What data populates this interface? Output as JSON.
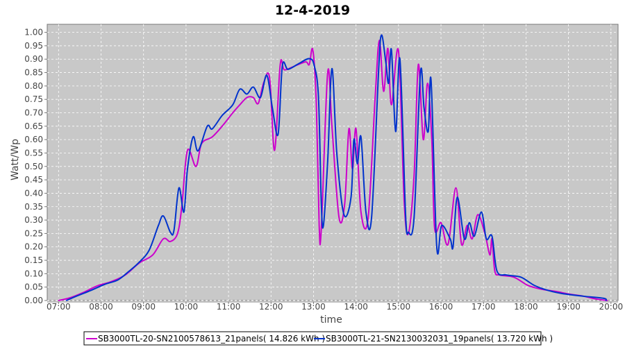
{
  "chart_data": {
    "type": "line",
    "title": "12-4-2019",
    "xlabel": "time",
    "ylabel": "Watt/Wp",
    "xlim": [
      "06:44",
      "20:10"
    ],
    "ylim": [
      0,
      1.03
    ],
    "grid": true,
    "legend_position": "bottom",
    "x_ticks": [
      "07:00",
      "08:00",
      "09:00",
      "10:00",
      "11:00",
      "12:00",
      "13:00",
      "14:00",
      "15:00",
      "16:00",
      "17:00",
      "18:00",
      "19:00",
      "20:00"
    ],
    "y_ticks": [
      "0.00",
      "0.05",
      "0.10",
      "0.15",
      "0.20",
      "0.25",
      "0.30",
      "0.35",
      "0.40",
      "0.45",
      "0.50",
      "0.55",
      "0.60",
      "0.65",
      "0.70",
      "0.75",
      "0.80",
      "0.85",
      "0.90",
      "0.95",
      "1.00"
    ],
    "series": [
      {
        "name": "SB3000TL-20-SN2100578613_21panels( 14.826 kWh )",
        "color": "#cc00cc",
        "points": [
          [
            "07:00",
            0
          ],
          [
            "07:16",
            0.01
          ],
          [
            "07:35",
            0.03
          ],
          [
            "07:55",
            0.055
          ],
          [
            "08:14",
            0.07
          ],
          [
            "08:34",
            0.095
          ],
          [
            "08:54",
            0.14
          ],
          [
            "09:13",
            0.17
          ],
          [
            "09:28",
            0.23
          ],
          [
            "09:38",
            0.22
          ],
          [
            "09:48",
            0.25
          ],
          [
            "09:54",
            0.35
          ],
          [
            "10:02",
            0.56
          ],
          [
            "10:14",
            0.5
          ],
          [
            "10:22",
            0.585
          ],
          [
            "10:37",
            0.61
          ],
          [
            "10:51",
            0.65
          ],
          [
            "11:06",
            0.7
          ],
          [
            "11:16",
            0.73
          ],
          [
            "11:26",
            0.757
          ],
          [
            "11:35",
            0.757
          ],
          [
            "11:42",
            0.735
          ],
          [
            "11:50",
            0.815
          ],
          [
            "11:58",
            0.83
          ],
          [
            "12:05",
            0.56
          ],
          [
            "12:13",
            0.88
          ],
          [
            "12:19",
            0.86
          ],
          [
            "12:34",
            0.875
          ],
          [
            "12:49",
            0.89
          ],
          [
            "12:54",
            0.88
          ],
          [
            "12:59",
            0.935
          ],
          [
            "13:04",
            0.73
          ],
          [
            "13:08",
            0.28
          ],
          [
            "13:11",
            0.267
          ],
          [
            "13:20",
            0.85
          ],
          [
            "13:26",
            0.65
          ],
          [
            "13:36",
            0.31
          ],
          [
            "13:44",
            0.36
          ],
          [
            "13:50",
            0.64
          ],
          [
            "13:55",
            0.49
          ],
          [
            "14:00",
            0.64
          ],
          [
            "14:07",
            0.33
          ],
          [
            "14:17",
            0.305
          ],
          [
            "14:27",
            0.756
          ],
          [
            "14:33",
            0.97
          ],
          [
            "14:39",
            0.78
          ],
          [
            "14:45",
            0.94
          ],
          [
            "14:50",
            0.73
          ],
          [
            "15:00",
            0.93
          ],
          [
            "15:08",
            0.37
          ],
          [
            "15:14",
            0.25
          ],
          [
            "15:22",
            0.466
          ],
          [
            "15:28",
            0.88
          ],
          [
            "15:35",
            0.6
          ],
          [
            "15:41",
            0.81
          ],
          [
            "15:47",
            0.6
          ],
          [
            "15:51",
            0.27
          ],
          [
            "16:00",
            0.29
          ],
          [
            "16:10",
            0.21
          ],
          [
            "16:21",
            0.42
          ],
          [
            "16:29",
            0.21
          ],
          [
            "16:37",
            0.28
          ],
          [
            "16:44",
            0.23
          ],
          [
            "16:52",
            0.32
          ],
          [
            "17:02",
            0.25
          ],
          [
            "17:09",
            0.17
          ],
          [
            "17:12",
            0.23
          ],
          [
            "17:16",
            0.11
          ],
          [
            "17:23",
            0.095
          ],
          [
            "17:43",
            0.087
          ],
          [
            "18:03",
            0.056
          ],
          [
            "18:22",
            0.042
          ],
          [
            "18:42",
            0.034
          ],
          [
            "19:01",
            0.024
          ],
          [
            "19:21",
            0.016
          ],
          [
            "19:40",
            0.005
          ],
          [
            "19:55",
            0
          ]
        ]
      },
      {
        "name": "SB3000TL-21-SN2130032031_19panels( 13.720 kWh )",
        "color": "#0033cc",
        "points": [
          [
            "07:11",
            0
          ],
          [
            "07:25",
            0.016
          ],
          [
            "07:45",
            0.037
          ],
          [
            "08:05",
            0.06
          ],
          [
            "08:24",
            0.077
          ],
          [
            "08:39",
            0.108
          ],
          [
            "08:54",
            0.143
          ],
          [
            "09:08",
            0.188
          ],
          [
            "09:21",
            0.28
          ],
          [
            "09:28",
            0.315
          ],
          [
            "09:38",
            0.254
          ],
          [
            "09:43",
            0.262
          ],
          [
            "09:50",
            0.42
          ],
          [
            "09:57",
            0.33
          ],
          [
            "10:02",
            0.49
          ],
          [
            "10:10",
            0.61
          ],
          [
            "10:17",
            0.558
          ],
          [
            "10:30",
            0.65
          ],
          [
            "10:37",
            0.64
          ],
          [
            "10:51",
            0.69
          ],
          [
            "11:06",
            0.73
          ],
          [
            "11:16",
            0.788
          ],
          [
            "11:26",
            0.77
          ],
          [
            "11:35",
            0.796
          ],
          [
            "11:45",
            0.757
          ],
          [
            "11:54",
            0.84
          ],
          [
            "12:02",
            0.717
          ],
          [
            "12:10",
            0.62
          ],
          [
            "12:16",
            0.875
          ],
          [
            "12:24",
            0.862
          ],
          [
            "12:39",
            0.883
          ],
          [
            "12:54",
            0.902
          ],
          [
            "13:01",
            0.876
          ],
          [
            "13:07",
            0.757
          ],
          [
            "13:11",
            0.36
          ],
          [
            "13:14",
            0.28
          ],
          [
            "13:20",
            0.52
          ],
          [
            "13:26",
            0.865
          ],
          [
            "13:33",
            0.545
          ],
          [
            "13:43",
            0.32
          ],
          [
            "13:53",
            0.386
          ],
          [
            "13:57",
            0.6
          ],
          [
            "14:02",
            0.51
          ],
          [
            "14:07",
            0.61
          ],
          [
            "14:14",
            0.33
          ],
          [
            "14:22",
            0.31
          ],
          [
            "14:32",
            0.862
          ],
          [
            "14:36",
            0.99
          ],
          [
            "14:42",
            0.89
          ],
          [
            "14:46",
            0.81
          ],
          [
            "14:50",
            0.935
          ],
          [
            "14:56",
            0.63
          ],
          [
            "15:02",
            0.9
          ],
          [
            "15:10",
            0.32
          ],
          [
            "15:14",
            0.255
          ],
          [
            "15:22",
            0.31
          ],
          [
            "15:31",
            0.85
          ],
          [
            "15:36",
            0.72
          ],
          [
            "15:42",
            0.63
          ],
          [
            "15:46",
            0.82
          ],
          [
            "15:54",
            0.2
          ],
          [
            "16:01",
            0.28
          ],
          [
            "16:13",
            0.23
          ],
          [
            "16:17",
            0.2
          ],
          [
            "16:23",
            0.385
          ],
          [
            "16:33",
            0.23
          ],
          [
            "16:40",
            0.29
          ],
          [
            "16:47",
            0.24
          ],
          [
            "16:57",
            0.33
          ],
          [
            "17:04",
            0.23
          ],
          [
            "17:12",
            0.24
          ],
          [
            "17:19",
            0.11
          ],
          [
            "17:33",
            0.095
          ],
          [
            "17:53",
            0.087
          ],
          [
            "18:12",
            0.056
          ],
          [
            "18:32",
            0.037
          ],
          [
            "18:51",
            0.026
          ],
          [
            "19:21",
            0.016
          ],
          [
            "19:50",
            0.008
          ],
          [
            "19:53",
            0
          ]
        ]
      }
    ]
  }
}
